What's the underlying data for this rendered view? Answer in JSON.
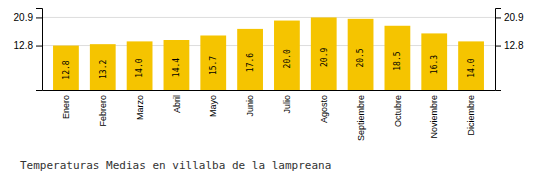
{
  "chart_data": {
    "type": "bar",
    "title": "Temperaturas Medias en villalba de la lampreana",
    "categories": [
      "Enero",
      "Febrero",
      "Marzo",
      "Abril",
      "Mayo",
      "Junio",
      "Julio",
      "Agosto",
      "Septiembre",
      "Octubre",
      "Noviembre",
      "Diciembre"
    ],
    "values": [
      12.8,
      13.2,
      14.0,
      14.4,
      15.7,
      17.6,
      20.0,
      20.9,
      20.5,
      18.5,
      16.3,
      14.0
    ],
    "value_labels": [
      "12.8",
      "13.2",
      "14.0",
      "14.4",
      "15.7",
      "17.6",
      "20.0",
      "20.9",
      "20.5",
      "18.5",
      "16.3",
      "14.0"
    ],
    "color": "#F5C400",
    "ylim": [
      0,
      23.617
    ],
    "yticks": [
      12.8,
      20.9
    ],
    "y2lim": [
      0,
      23.617
    ],
    "y2ticks": [
      12.8,
      20.9
    ],
    "grid": true,
    "data_labels": true
  }
}
